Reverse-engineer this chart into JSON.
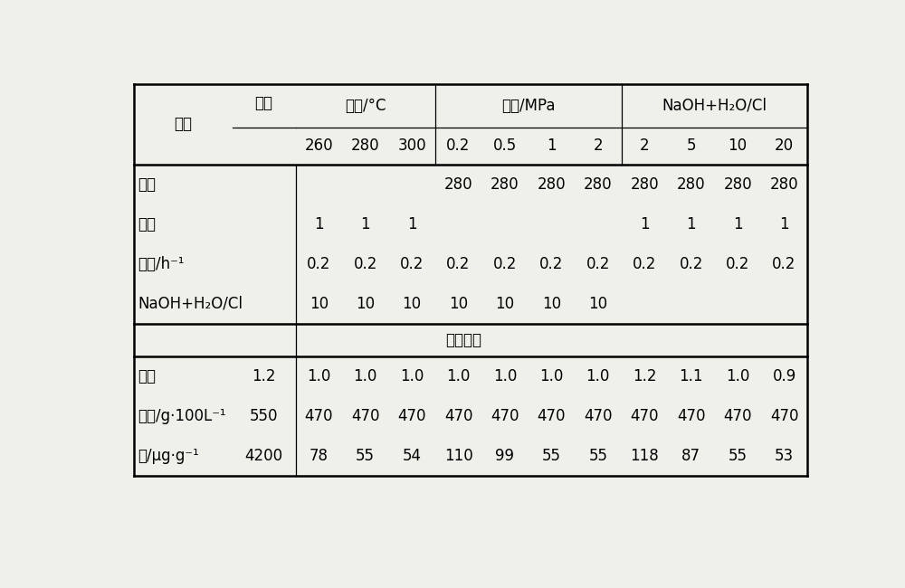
{
  "bg_color": "#f0f0eb",
  "table_bg": "#ffffff",
  "group_labels": [
    "温度/°C",
    "压力/MPa",
    "NaOH+H₂O/Cl"
  ],
  "group_spans": [
    3,
    4,
    4
  ],
  "sub_labels": [
    "260",
    "280",
    "300",
    "0.2",
    "0.5",
    "1",
    "2",
    "2",
    "5",
    "10",
    "20"
  ],
  "header_left": [
    "项目",
    "原料"
  ],
  "conditions_rows": [
    {
      "label": "温度",
      "values": [
        "",
        "",
        "",
        "280",
        "280",
        "280",
        "280",
        "280",
        "280",
        "280",
        "280"
      ]
    },
    {
      "label": "压力",
      "values": [
        "1",
        "1",
        "1",
        "",
        "",
        "",
        "",
        "1",
        "1",
        "1",
        "1"
      ]
    },
    {
      "label": "空速/h⁻¹",
      "values": [
        "0.2",
        "0.2",
        "0.2",
        "0.2",
        "0.2",
        "0.2",
        "0.2",
        "0.2",
        "0.2",
        "0.2",
        "0.2"
      ]
    },
    {
      "label": "NaOH+H₂O/Cl",
      "values": [
        "10",
        "10",
        "10",
        "10",
        "10",
        "10",
        "10",
        "",
        "",
        "",
        ""
      ]
    }
  ],
  "product_section_label": "产品性质",
  "product_rows": [
    {
      "label": "双烯",
      "raw": "1.2",
      "values": [
        "1.0",
        "1.0",
        "1.0",
        "1.0",
        "1.0",
        "1.0",
        "1.0",
        "1.2",
        "1.1",
        "1.0",
        "0.9"
      ]
    },
    {
      "label": "胶质/g·100L⁻¹",
      "raw": "550",
      "values": [
        "470",
        "470",
        "470",
        "470",
        "470",
        "470",
        "470",
        "470",
        "470",
        "470",
        "470"
      ]
    },
    {
      "label": "氯/μg·g⁻¹",
      "raw": "4200",
      "values": [
        "78",
        "55",
        "54",
        "110",
        "99",
        "55",
        "55",
        "118",
        "87",
        "55",
        "53"
      ]
    }
  ]
}
